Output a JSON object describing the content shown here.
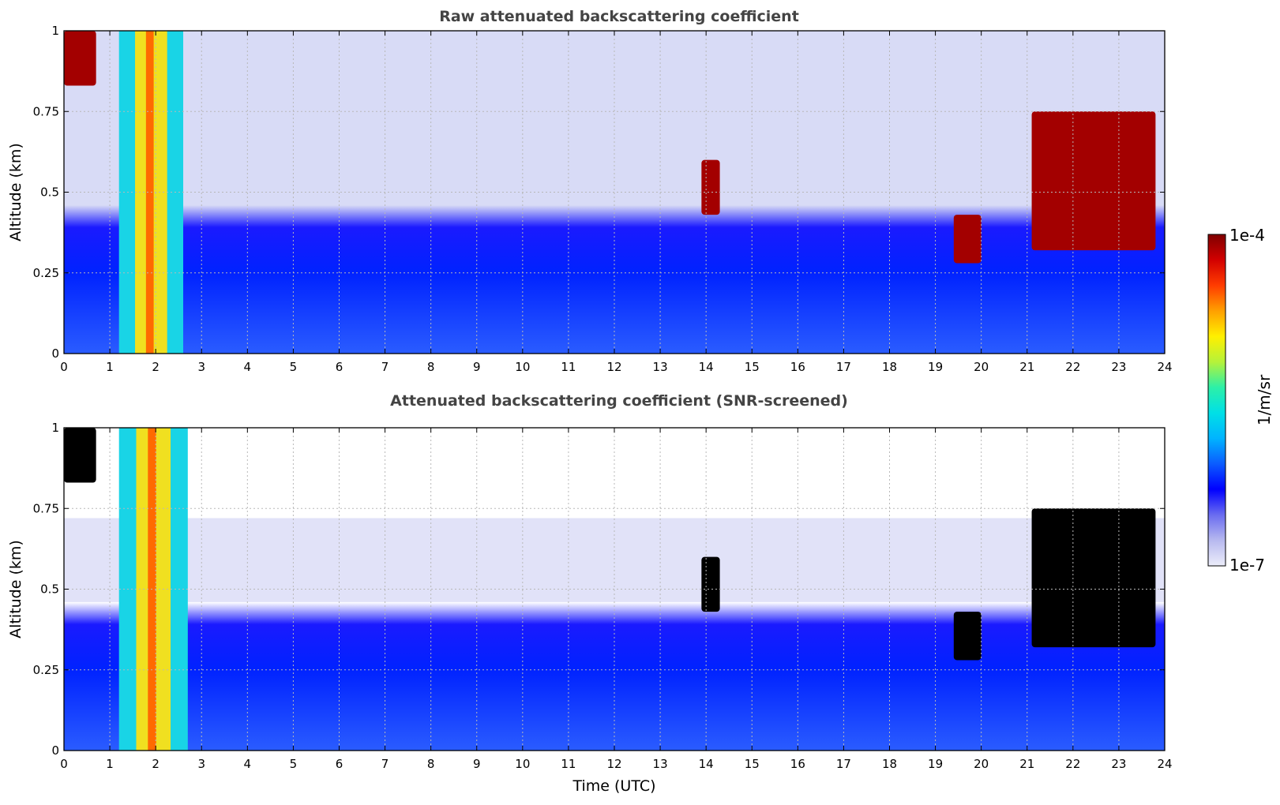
{
  "chart_data": [
    {
      "type": "heatmap",
      "title": "Raw attenuated backscattering coefficient",
      "xlabel": "",
      "ylabel": "Altitude (km)",
      "xlim": [
        0,
        24
      ],
      "ylim": [
        0,
        1
      ],
      "x_ticks": [
        0,
        1,
        2,
        3,
        4,
        5,
        6,
        7,
        8,
        9,
        10,
        11,
        12,
        13,
        14,
        15,
        16,
        17,
        18,
        19,
        20,
        21,
        22,
        23,
        24
      ],
      "y_ticks": [
        0,
        0.25,
        0.5,
        0.75,
        1
      ],
      "y_tick_labels": [
        "0",
        "0.25",
        "0.5",
        "0.75",
        "1"
      ],
      "grid": true,
      "grid_style": "dotted",
      "features": [
        {
          "time_range": [
            0,
            0.7
          ],
          "altitude_range": [
            0.83,
            1.0
          ],
          "level": "high"
        },
        {
          "time_range": [
            1.2,
            2.6
          ],
          "altitude_range": [
            0,
            1.0
          ],
          "level": "medium-high"
        },
        {
          "time_range": [
            13.9,
            14.3
          ],
          "altitude_range": [
            0.43,
            0.6
          ],
          "level": "high"
        },
        {
          "time_range": [
            19.4,
            20.0
          ],
          "altitude_range": [
            0.28,
            0.43
          ],
          "level": "high"
        },
        {
          "time_range": [
            21.1,
            23.8
          ],
          "altitude_range": [
            0.32,
            0.75
          ],
          "level": "high"
        }
      ]
    },
    {
      "type": "heatmap",
      "title": "Attenuated backscattering coefficient (SNR-screened)",
      "xlabel": "Time (UTC)",
      "ylabel": "Altitude (km)",
      "xlim": [
        0,
        24
      ],
      "ylim": [
        0,
        1
      ],
      "x_ticks": [
        0,
        1,
        2,
        3,
        4,
        5,
        6,
        7,
        8,
        9,
        10,
        11,
        12,
        13,
        14,
        15,
        16,
        17,
        18,
        19,
        20,
        21,
        22,
        23,
        24
      ],
      "y_ticks": [
        0,
        0.25,
        0.5,
        0.75,
        1
      ],
      "y_tick_labels": [
        "0",
        "0.25",
        "0.5",
        "0.75",
        "1"
      ],
      "grid": true,
      "grid_style": "dotted",
      "saturated_color": "#000000",
      "features": [
        {
          "time_range": [
            0,
            0.7
          ],
          "altitude_range": [
            0.83,
            1.0
          ],
          "level": "saturated"
        },
        {
          "time_range": [
            1.2,
            2.7
          ],
          "altitude_range": [
            0,
            1.0
          ],
          "level": "medium-high"
        },
        {
          "time_range": [
            13.9,
            14.3
          ],
          "altitude_range": [
            0.43,
            0.6
          ],
          "level": "saturated"
        },
        {
          "time_range": [
            19.4,
            20.0
          ],
          "altitude_range": [
            0.28,
            0.43
          ],
          "level": "saturated"
        },
        {
          "time_range": [
            21.1,
            23.8
          ],
          "altitude_range": [
            0.32,
            0.75
          ],
          "level": "saturated"
        }
      ]
    }
  ],
  "colorbar": {
    "label": "1/m/sr",
    "max_label": "1e-4",
    "min_label": "1e-7",
    "scale": "log",
    "range": [
      1e-07,
      0.0001
    ],
    "colors": [
      "#ecedfa",
      "#b7b9ef",
      "#6a6cf0",
      "#0000ff",
      "#0b5cff",
      "#00b4ff",
      "#00e0e6",
      "#2cf0a8",
      "#b5f23a",
      "#fff000",
      "#ffa000",
      "#ff3c00",
      "#d20000",
      "#7f0000"
    ]
  }
}
